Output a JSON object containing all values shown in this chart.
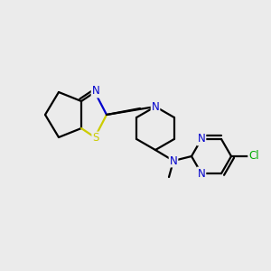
{
  "background_color": "#ebebeb",
  "bond_color": "#000000",
  "atom_colors": {
    "N": "#0000cc",
    "S": "#cccc00",
    "Cl": "#00aa00",
    "C": "#000000"
  },
  "figsize": [
    3.0,
    3.0
  ],
  "dpi": 100
}
